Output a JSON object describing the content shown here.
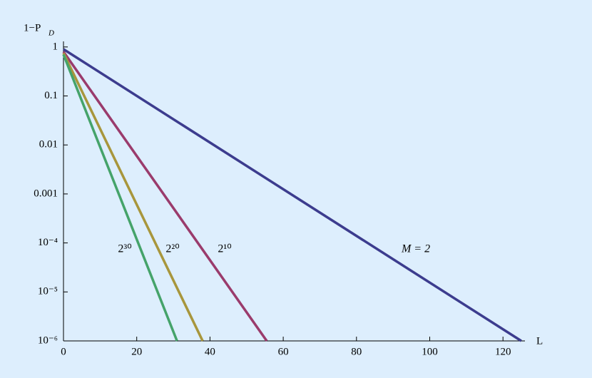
{
  "chart_data": {
    "type": "line",
    "ylabel": "1−P",
    "ylabel_sub": "D",
    "xlabel": "L",
    "log_y": true,
    "xlim": [
      0,
      126
    ],
    "ylim": [
      1e-06,
      1.2
    ],
    "xticks": [
      0,
      20,
      40,
      60,
      80,
      100,
      120
    ],
    "yticks": [
      1,
      0.1,
      0.01,
      0.001,
      {
        "value": 0.0001,
        "label": "10⁻⁴"
      },
      {
        "value": 1e-05,
        "label": "10⁻⁵"
      },
      {
        "value": 1e-06,
        "label": "10⁻⁶"
      }
    ],
    "series": [
      {
        "name": "M = 2",
        "color": "#3c3c8e",
        "x": [
          0,
          125
        ],
        "values": [
          0.9,
          1e-06
        ]
      },
      {
        "name": "2¹⁰",
        "color": "#9a3b6c",
        "x": [
          0,
          55.5
        ],
        "values": [
          0.8,
          1e-06
        ]
      },
      {
        "name": "2²⁰",
        "color": "#a8963c",
        "x": [
          0,
          38
        ],
        "values": [
          0.75,
          1e-06
        ]
      },
      {
        "name": "2³⁰",
        "color": "#45a36a",
        "x": [
          0,
          31
        ],
        "values": [
          0.7,
          1e-06
        ]
      }
    ]
  }
}
